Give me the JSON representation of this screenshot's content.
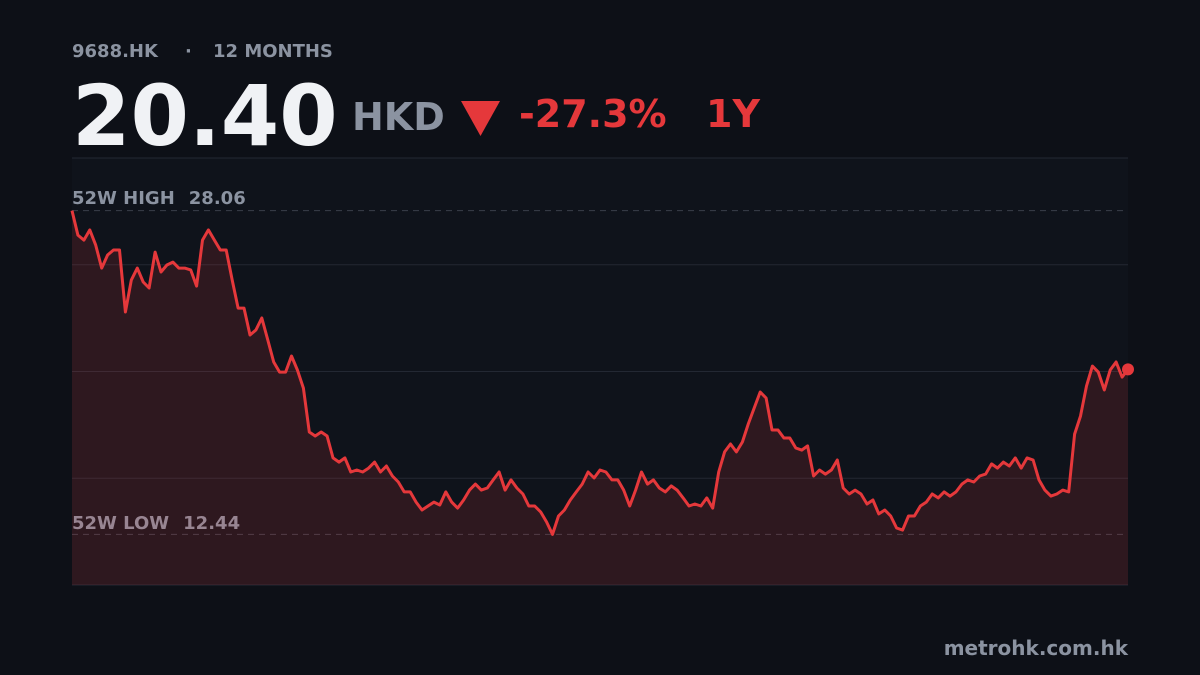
{
  "header": {
    "ticker": "9688.HK",
    "period": "12 MONTHS",
    "price": "20.40",
    "currency": "HKD",
    "change": "-27.3%",
    "range": "1Y"
  },
  "footer": {
    "source": "metrohk.com.hk"
  },
  "chart_data": {
    "type": "line",
    "color": "#e5383b",
    "ylim": [
      10,
      30.6
    ],
    "yticks": [
      15.15,
      20.3,
      25.45
    ],
    "grid": true,
    "high_label": "52W HIGH",
    "high": 28.06,
    "low_label": "52W LOW",
    "low": 12.44,
    "values": [
      28.06,
      26.88,
      26.64,
      27.13,
      26.4,
      25.29,
      25.92,
      26.16,
      26.16,
      23.17,
      24.71,
      25.29,
      24.62,
      24.33,
      26.06,
      25.1,
      25.44,
      25.58,
      25.29,
      25.29,
      25.2,
      24.42,
      26.64,
      27.13,
      26.64,
      26.16,
      26.16,
      24.71,
      23.36,
      23.36,
      22.06,
      22.3,
      22.88,
      21.82,
      20.76,
      20.27,
      20.27,
      21.05,
      20.37,
      19.5,
      17.38,
      17.19,
      17.38,
      17.19,
      16.13,
      15.93,
      16.13,
      15.45,
      15.55,
      15.45,
      15.64,
      15.93,
      15.45,
      15.74,
      15.26,
      14.97,
      14.49,
      14.49,
      14.0,
      13.62,
      13.81,
      14.0,
      13.86,
      14.49,
      14.0,
      13.71,
      14.1,
      14.58,
      14.87,
      14.58,
      14.68,
      15.07,
      15.45,
      14.58,
      15.07,
      14.68,
      14.39,
      13.81,
      13.81,
      13.52,
      13.04,
      12.44,
      13.33,
      13.62,
      14.1,
      14.49,
      14.87,
      15.45,
      15.16,
      15.55,
      15.45,
      15.07,
      15.07,
      14.58,
      13.81,
      14.58,
      15.45,
      14.87,
      15.07,
      14.68,
      14.49,
      14.78,
      14.58,
      14.2,
      13.81,
      13.91,
      13.81,
      14.2,
      13.71,
      15.45,
      16.42,
      16.8,
      16.42,
      16.9,
      17.77,
      18.54,
      19.31,
      19.02,
      17.48,
      17.48,
      17.09,
      17.09,
      16.61,
      16.51,
      16.71,
      15.26,
      15.55,
      15.35,
      15.55,
      16.03,
      14.68,
      14.39,
      14.58,
      14.39,
      13.91,
      14.1,
      13.43,
      13.62,
      13.33,
      12.75,
      12.65,
      13.33,
      13.33,
      13.81,
      14.0,
      14.39,
      14.2,
      14.49,
      14.29,
      14.49,
      14.87,
      15.07,
      14.97,
      15.26,
      15.35,
      15.84,
      15.64,
      15.93,
      15.74,
      16.13,
      15.64,
      16.13,
      16.03,
      15.07,
      14.58,
      14.29,
      14.39,
      14.58,
      14.49,
      17.28,
      18.15,
      19.6,
      20.56,
      20.27,
      19.41,
      20.37,
      20.76,
      20.03,
      20.4
    ]
  }
}
